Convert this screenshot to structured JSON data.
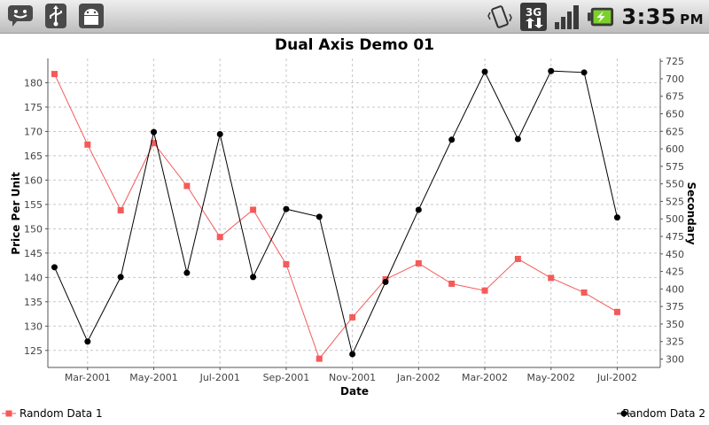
{
  "status_bar": {
    "left_icons": [
      "chat-icon",
      "usb-icon",
      "android-debug-icon"
    ],
    "right_icons": [
      "vibrate-icon",
      "3g-data-icon",
      "signal-icon",
      "battery-charging-icon"
    ],
    "network_label": "3G",
    "clock_time": "3:35",
    "clock_ampm": "PM"
  },
  "chart_data": {
    "type": "line",
    "title": "Dual Axis Demo 01",
    "xlabel": "Date",
    "ylabel_left": "Price Per Unit",
    "ylabel_right": "Secondary",
    "x_ticks": [
      "Mar-2001",
      "May-2001",
      "Jul-2001",
      "Sep-2001",
      "Nov-2001",
      "Jan-2002",
      "Mar-2002",
      "May-2002",
      "Jul-2002"
    ],
    "x_tick_months": [
      2,
      4,
      6,
      8,
      10,
      12,
      14,
      16,
      18
    ],
    "x_range_months": [
      0.8,
      19.3
    ],
    "ylim_left": [
      121.5,
      185
    ],
    "yticks_left": [
      125,
      130,
      135,
      140,
      145,
      150,
      155,
      160,
      165,
      170,
      175,
      180
    ],
    "ylim_right": [
      288,
      729
    ],
    "yticks_right": [
      300,
      325,
      350,
      375,
      400,
      425,
      450,
      475,
      500,
      525,
      550,
      575,
      600,
      625,
      650,
      675,
      700,
      725
    ],
    "grid": true,
    "legend_placement": "bottom",
    "series": [
      {
        "name": "Random Data 1",
        "axis": "left",
        "color": "#f55a5a",
        "marker": "square",
        "x_months": [
          1,
          2,
          3,
          4,
          5,
          6,
          7,
          8,
          9,
          10,
          11,
          12,
          13,
          14,
          15,
          16,
          17,
          18
        ],
        "values": [
          181.8,
          167.3,
          153.8,
          167.6,
          158.8,
          148.3,
          153.9,
          142.7,
          123.3,
          131.8,
          139.6,
          142.9,
          138.7,
          137.3,
          143.8,
          139.9,
          136.9,
          132.9
        ]
      },
      {
        "name": "Random Data 2",
        "axis": "right",
        "color": "#000000",
        "marker": "circle",
        "x_months": [
          1,
          2,
          3,
          4,
          5,
          6,
          7,
          8,
          9,
          10,
          11,
          12,
          13,
          14,
          15,
          16,
          17,
          18
        ],
        "values": [
          431,
          325,
          417,
          624,
          423,
          621,
          417,
          514,
          503,
          307,
          410,
          513,
          613,
          710,
          614,
          711,
          709,
          502
        ]
      }
    ]
  }
}
